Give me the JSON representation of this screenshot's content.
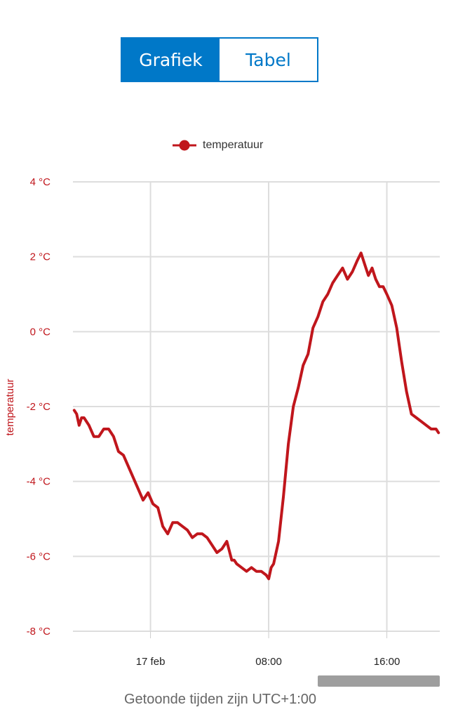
{
  "tabs": {
    "chart_label": "Grafiek",
    "table_label": "Tabel",
    "active": "chart"
  },
  "footer": {
    "timezone_note": "Getoonde tijden zijn UTC+1:00"
  },
  "colors": {
    "accent": "#0078c8",
    "series": "#c0161c",
    "grid": "#dddddd",
    "scrollbar": "#9e9e9e"
  },
  "chart_data": {
    "type": "line",
    "title": "",
    "xlabel": "",
    "ylabel": "temperatuur",
    "legend": {
      "entries": [
        "temperatuur"
      ],
      "placement": "top"
    },
    "grid": true,
    "ylim": [
      -8,
      4
    ],
    "yticks": [
      {
        "value": 4,
        "label": "4 °C"
      },
      {
        "value": 2,
        "label": "2 °C"
      },
      {
        "value": 0,
        "label": "0 °C"
      },
      {
        "value": -2,
        "label": "-2 °C"
      },
      {
        "value": -4,
        "label": "-4 °C"
      },
      {
        "value": -6,
        "label": "-6 °C"
      },
      {
        "value": -8,
        "label": "-8 °C"
      }
    ],
    "xlim": [
      "2024-02-16 18:45",
      "2024-02-17 19:35"
    ],
    "xticks": [
      {
        "value": "2024-02-17 00:00",
        "label": "17 feb"
      },
      {
        "value": "2024-02-17 08:00",
        "label": "08:00"
      },
      {
        "value": "2024-02-17 16:00",
        "label": "16:00"
      }
    ],
    "series": [
      {
        "name": "temperatuur",
        "x": [
          "2024-02-16 18:50",
          "2024-02-16 19:00",
          "2024-02-16 19:10",
          "2024-02-16 19:20",
          "2024-02-16 19:30",
          "2024-02-16 19:50",
          "2024-02-16 20:10",
          "2024-02-16 20:30",
          "2024-02-16 20:50",
          "2024-02-16 21:10",
          "2024-02-16 21:30",
          "2024-02-16 21:50",
          "2024-02-16 22:10",
          "2024-02-16 22:30",
          "2024-02-16 22:50",
          "2024-02-16 23:10",
          "2024-02-16 23:30",
          "2024-02-16 23:50",
          "2024-02-17 00:10",
          "2024-02-17 00:30",
          "2024-02-17 00:50",
          "2024-02-17 01:10",
          "2024-02-17 01:30",
          "2024-02-17 01:50",
          "2024-02-17 02:10",
          "2024-02-17 02:30",
          "2024-02-17 02:50",
          "2024-02-17 03:10",
          "2024-02-17 03:30",
          "2024-02-17 03:50",
          "2024-02-17 04:10",
          "2024-02-17 04:30",
          "2024-02-17 04:50",
          "2024-02-17 05:10",
          "2024-02-17 05:30",
          "2024-02-17 05:40",
          "2024-02-17 05:50",
          "2024-02-17 06:10",
          "2024-02-17 06:30",
          "2024-02-17 06:50",
          "2024-02-17 07:10",
          "2024-02-17 07:30",
          "2024-02-17 07:50",
          "2024-02-17 08:00",
          "2024-02-17 08:10",
          "2024-02-17 08:20",
          "2024-02-17 08:40",
          "2024-02-17 09:00",
          "2024-02-17 09:20",
          "2024-02-17 09:40",
          "2024-02-17 10:00",
          "2024-02-17 10:20",
          "2024-02-17 10:40",
          "2024-02-17 11:00",
          "2024-02-17 11:20",
          "2024-02-17 11:40",
          "2024-02-17 12:00",
          "2024-02-17 12:20",
          "2024-02-17 12:40",
          "2024-02-17 13:00",
          "2024-02-17 13:20",
          "2024-02-17 13:40",
          "2024-02-17 14:00",
          "2024-02-17 14:15",
          "2024-02-17 14:30",
          "2024-02-17 14:45",
          "2024-02-17 15:00",
          "2024-02-17 15:15",
          "2024-02-17 15:30",
          "2024-02-17 15:45",
          "2024-02-17 16:00",
          "2024-02-17 16:20",
          "2024-02-17 16:40",
          "2024-02-17 17:00",
          "2024-02-17 17:20",
          "2024-02-17 17:40",
          "2024-02-17 18:00",
          "2024-02-17 18:20",
          "2024-02-17 18:40",
          "2024-02-17 19:00",
          "2024-02-17 19:20",
          "2024-02-17 19:30"
        ],
        "values": [
          -2.1,
          -2.2,
          -2.5,
          -2.3,
          -2.3,
          -2.5,
          -2.8,
          -2.8,
          -2.6,
          -2.6,
          -2.8,
          -3.2,
          -3.3,
          -3.6,
          -3.9,
          -4.2,
          -4.5,
          -4.3,
          -4.6,
          -4.7,
          -5.2,
          -5.4,
          -5.1,
          -5.1,
          -5.2,
          -5.3,
          -5.5,
          -5.4,
          -5.4,
          -5.5,
          -5.7,
          -5.9,
          -5.8,
          -5.6,
          -6.1,
          -6.1,
          -6.2,
          -6.3,
          -6.4,
          -6.3,
          -6.4,
          -6.4,
          -6.5,
          -6.6,
          -6.3,
          -6.2,
          -5.6,
          -4.4,
          -3.0,
          -2.0,
          -1.5,
          -0.9,
          -0.6,
          0.1,
          0.4,
          0.8,
          1.0,
          1.3,
          1.5,
          1.7,
          1.4,
          1.6,
          1.9,
          2.1,
          1.8,
          1.5,
          1.7,
          1.4,
          1.2,
          1.2,
          1.0,
          0.7,
          0.1,
          -0.8,
          -1.6,
          -2.2,
          -2.3,
          -2.4,
          -2.5,
          -2.6,
          -2.6,
          -2.7
        ]
      }
    ]
  }
}
